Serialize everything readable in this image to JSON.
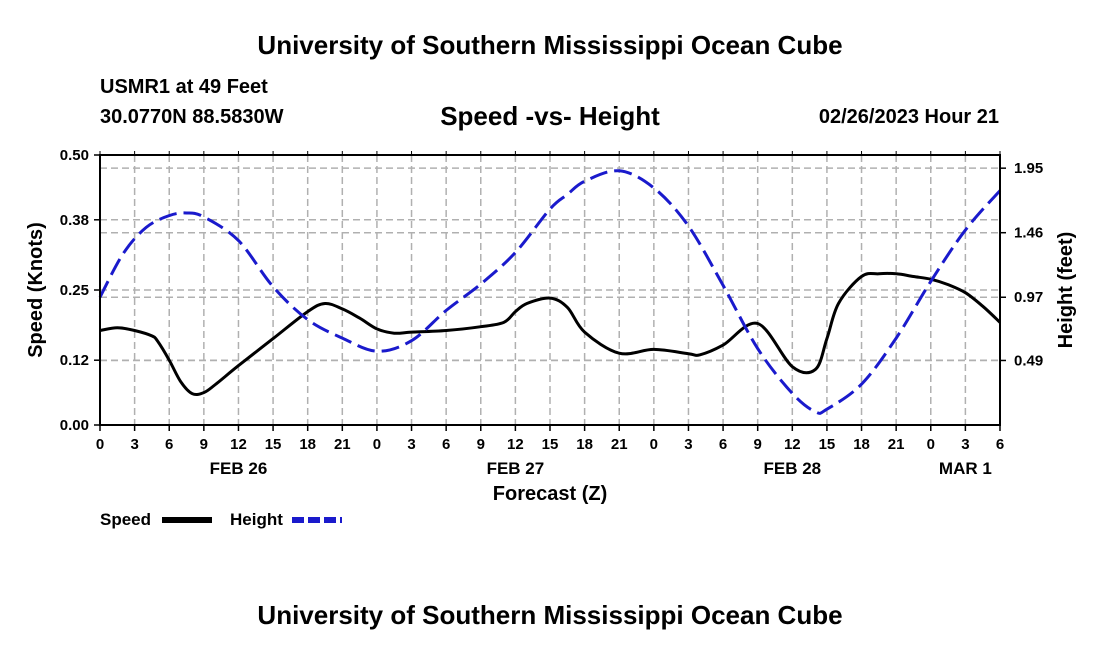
{
  "header": {
    "title": "University of Southern Mississippi Ocean Cube",
    "station": "USMR1 at 49 Feet",
    "coords": "30.0770N  88.5830W",
    "chart_title": "Speed -vs- Height",
    "datetime": "02/26/2023 Hour 21"
  },
  "footer": {
    "title": "University of Southern Mississippi Ocean Cube"
  },
  "colors": {
    "speed": "#000000",
    "height": "#1a1acc",
    "grid": "#b0b0b0"
  },
  "chart_data": {
    "type": "line",
    "title": "Speed -vs- Height",
    "xlabel": "Forecast (Z)",
    "ylabel": "Speed (Knots)",
    "y2label": "Height (feet)",
    "xlim": [
      0,
      78
    ],
    "ylim": [
      0,
      0.5
    ],
    "y2lim": [
      0.0,
      2.05
    ],
    "x_ticks": [
      0,
      3,
      6,
      9,
      12,
      15,
      18,
      21,
      24,
      27,
      30,
      33,
      36,
      39,
      42,
      45,
      48,
      51,
      54,
      57,
      60,
      63,
      66,
      69,
      72,
      75,
      78
    ],
    "x_tick_labels": [
      "0",
      "3",
      "6",
      "9",
      "12",
      "15",
      "18",
      "21",
      "0",
      "3",
      "6",
      "9",
      "12",
      "15",
      "18",
      "21",
      "0",
      "3",
      "6",
      "9",
      "12",
      "15",
      "18",
      "21",
      "0",
      "3",
      "6"
    ],
    "date_labels": [
      {
        "x": 12,
        "label": "FEB 26"
      },
      {
        "x": 36,
        "label": "FEB 27"
      },
      {
        "x": 60,
        "label": "FEB 28"
      },
      {
        "x": 75,
        "label": "MAR 1"
      }
    ],
    "y_ticks": [
      0.0,
      0.12,
      0.25,
      0.38,
      0.5
    ],
    "y_tick_labels": [
      "0.00",
      "0.12",
      "0.25",
      "0.38",
      "0.50"
    ],
    "y2_ticks": [
      0.49,
      0.97,
      1.46,
      1.95
    ],
    "y2_tick_labels": [
      "0.49",
      "0.97",
      "1.46",
      "1.95"
    ],
    "grid": true,
    "legend": [
      {
        "name": "Speed",
        "style": "solid"
      },
      {
        "name": "Height",
        "style": "dashed"
      }
    ],
    "series": [
      {
        "name": "Speed",
        "axis": "left",
        "style": "solid",
        "x": [
          0,
          1.5,
          3,
          4.5,
          5,
          6,
          7,
          8,
          9,
          10,
          12,
          15,
          18,
          19.5,
          21,
          22.5,
          24,
          25.5,
          27,
          30,
          33,
          35,
          36,
          37,
          39,
          40.5,
          42,
          45,
          48,
          51,
          52,
          54,
          57,
          60,
          62,
          63,
          64,
          66,
          67.5,
          69,
          70.5,
          72,
          73.5,
          75,
          76.5,
          78
        ],
        "y": [
          0.175,
          0.18,
          0.175,
          0.165,
          0.155,
          0.12,
          0.08,
          0.058,
          0.06,
          0.075,
          0.11,
          0.16,
          0.21,
          0.225,
          0.215,
          0.198,
          0.178,
          0.17,
          0.172,
          0.175,
          0.182,
          0.19,
          0.21,
          0.225,
          0.235,
          0.218,
          0.172,
          0.133,
          0.14,
          0.132,
          0.13,
          0.148,
          0.188,
          0.108,
          0.103,
          0.16,
          0.225,
          0.275,
          0.28,
          0.28,
          0.275,
          0.27,
          0.26,
          0.245,
          0.22,
          0.19
        ]
      },
      {
        "name": "Height",
        "axis": "right",
        "style": "dashed",
        "x": [
          0,
          2,
          4,
          6,
          7.5,
          9,
          12,
          15,
          18,
          21,
          24,
          27,
          30,
          33,
          36,
          39,
          40.5,
          42,
          45,
          48,
          51,
          54,
          57,
          60,
          62,
          63,
          66,
          69,
          72,
          75,
          78
        ],
        "y": [
          0.97,
          1.3,
          1.5,
          1.59,
          1.61,
          1.58,
          1.4,
          1.05,
          0.8,
          0.66,
          0.56,
          0.64,
          0.87,
          1.07,
          1.31,
          1.64,
          1.75,
          1.85,
          1.93,
          1.8,
          1.51,
          1.06,
          0.58,
          0.24,
          0.1,
          0.12,
          0.31,
          0.66,
          1.09,
          1.48,
          1.78
        ]
      }
    ]
  }
}
